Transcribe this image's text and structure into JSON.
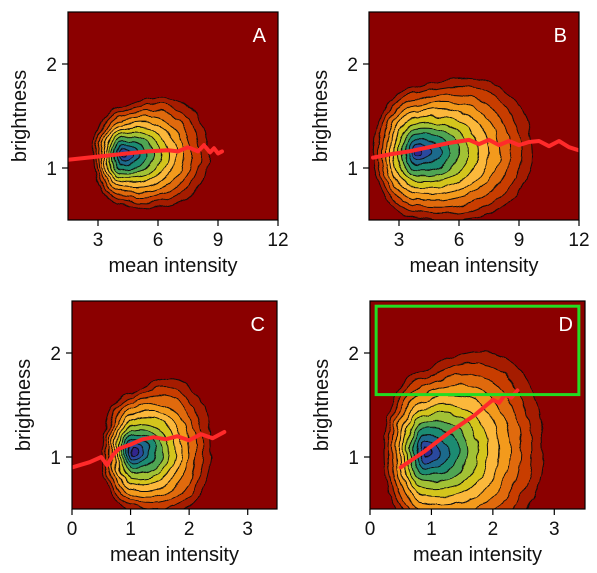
{
  "colors": {
    "background": "#8b0000",
    "contour_fills": [
      "#a51c00",
      "#c83c00",
      "#e06a0c",
      "#f39a1f",
      "#fbb83a",
      "#d4c51d",
      "#a2c234",
      "#4fa553",
      "#1f8b72",
      "#1e6b8c",
      "#2c4a9e",
      "#31288e"
    ],
    "trend_line": "#ff2a2a",
    "roi_box": "#22dd22"
  },
  "chart_data": [
    {
      "panel": "A",
      "type": "contour",
      "xlabel": "mean intensity",
      "ylabel": "brightness",
      "xlim": [
        1.5,
        12
      ],
      "ylim": [
        0.5,
        2.5
      ],
      "xticks": [
        "3",
        "6",
        "9",
        "12"
      ],
      "xtick_values": [
        3,
        6,
        9,
        12
      ],
      "yticks": [
        "1",
        "2"
      ],
      "ytick_values": [
        1,
        2
      ],
      "density": {
        "peak": [
          4.2,
          1.12
        ],
        "spread_x_left": 0.6,
        "spread_x_right": 1.8,
        "spread_y": 0.18,
        "tail_spread_y": 0.35,
        "x_max": 9.5
      },
      "trend": {
        "x": [
          1.5,
          2.5,
          3.5,
          4.5,
          5.5,
          6.5,
          7.0,
          7.5,
          8.0,
          8.3,
          8.6,
          8.8,
          9.0,
          9.2
        ],
        "y": [
          1.08,
          1.1,
          1.12,
          1.14,
          1.16,
          1.17,
          1.16,
          1.2,
          1.16,
          1.22,
          1.15,
          1.19,
          1.14,
          1.16
        ]
      }
    },
    {
      "panel": "B",
      "type": "contour",
      "xlabel": "mean intensity",
      "ylabel": "brightness",
      "xlim": [
        1.5,
        12
      ],
      "ylim": [
        0.5,
        2.5
      ],
      "xticks": [
        "3",
        "6",
        "9",
        "12"
      ],
      "xtick_values": [
        3,
        6,
        9,
        12
      ],
      "yticks": [
        "1",
        "2"
      ],
      "ytick_values": [
        1,
        2
      ],
      "density": {
        "peak": [
          3.9,
          1.15
        ],
        "spread_x_left": 0.9,
        "spread_x_right": 2.4,
        "spread_y": 0.24,
        "tail_spread_y": 0.45,
        "x_max": 12
      },
      "trend": {
        "x": [
          1.7,
          2.5,
          3.5,
          4.5,
          5.5,
          6.5,
          7.0,
          7.5,
          8.0,
          8.5,
          9.0,
          9.5,
          10.0,
          10.5,
          11.0,
          11.5,
          12.0
        ],
        "y": [
          1.1,
          1.13,
          1.16,
          1.2,
          1.24,
          1.27,
          1.23,
          1.27,
          1.22,
          1.26,
          1.22,
          1.25,
          1.26,
          1.21,
          1.26,
          1.2,
          1.17
        ]
      }
    },
    {
      "panel": "C",
      "type": "contour",
      "xlabel": "mean intensity",
      "ylabel": "brightness",
      "xlim": [
        0,
        3.5
      ],
      "ylim": [
        0.5,
        2.5
      ],
      "xticks": [
        "0",
        "1",
        "2",
        "3"
      ],
      "xtick_values": [
        0,
        1,
        2,
        3
      ],
      "yticks": [
        "1",
        "2"
      ],
      "ytick_values": [
        1,
        2
      ],
      "density": {
        "peak": [
          1.05,
          1.05
        ],
        "spread_x_left": 0.22,
        "spread_x_right": 0.55,
        "spread_y": 0.22,
        "tail_spread_y": 0.45,
        "x_max": 2.7
      },
      "trend": {
        "x": [
          0.0,
          0.3,
          0.5,
          0.6,
          0.7,
          0.8,
          1.0,
          1.2,
          1.4,
          1.6,
          1.8,
          2.0,
          2.2,
          2.4,
          2.6
        ],
        "y": [
          0.9,
          0.95,
          1.0,
          0.92,
          1.02,
          1.08,
          1.12,
          1.17,
          1.19,
          1.17,
          1.2,
          1.16,
          1.22,
          1.18,
          1.24
        ]
      }
    },
    {
      "panel": "D",
      "type": "contour",
      "xlabel": "mean intensity",
      "ylabel": "brightness",
      "xlim": [
        0,
        3.5
      ],
      "ylim": [
        0.5,
        2.5
      ],
      "xticks": [
        "0",
        "1",
        "2",
        "3"
      ],
      "xtick_values": [
        0,
        1,
        2,
        3
      ],
      "yticks": [
        "1",
        "2"
      ],
      "ytick_values": [
        1,
        2
      ],
      "density": {
        "peak": [
          0.9,
          1.05
        ],
        "spread_x_left": 0.28,
        "spread_x_right": 0.8,
        "spread_y": 0.3,
        "tail_spread_y": 0.65,
        "x_max": 3.5
      },
      "trend": {
        "x": [
          0.5,
          0.7,
          0.9,
          1.1,
          1.3,
          1.5,
          1.7,
          1.9,
          2.0,
          2.1,
          2.2,
          2.3,
          2.4
        ],
        "y": [
          0.9,
          0.98,
          1.06,
          1.15,
          1.24,
          1.32,
          1.4,
          1.5,
          1.55,
          1.52,
          1.6,
          1.57,
          1.64
        ]
      },
      "roi": {
        "x": [
          0.1,
          3.4
        ],
        "y": [
          1.6,
          2.45
        ]
      }
    }
  ]
}
